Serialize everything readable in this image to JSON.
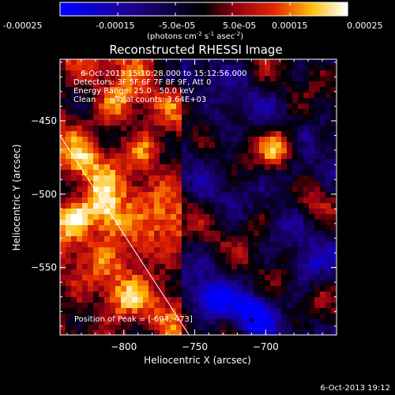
{
  "chart_data": {
    "type": "heatmap",
    "title": "Reconstructed RHESSI Image",
    "xlabel": "Heliocentric X (arcsec)",
    "ylabel": "Heliocentric Y (arcsec)",
    "xlim": [
      -845,
      -650
    ],
    "ylim": [
      -596,
      -408
    ],
    "xticks": [
      -800,
      -750,
      -700
    ],
    "yticks": [
      -450,
      -500,
      -550
    ],
    "colorbar": {
      "min": -0.00025,
      "max": 0.00025,
      "tick_labels": [
        "-0.00025",
        "-0.00015",
        "-5.0e-05",
        "5.0e-05",
        "0.00015",
        "0.00025"
      ],
      "unit_label": "(photons cm",
      "unit_sup1": "-2",
      "unit_mid": " s",
      "unit_sup2": "-1",
      "unit_mid2": " asec",
      "unit_sup3": "-2",
      "unit_end": ")"
    },
    "annotations": {
      "time_range": "6-Oct-2013 15:10:28.000 to 15:12:56.000",
      "detectors": "Detectors: 3F 5F 6F 7F 8F 9F, Att 0",
      "energy": "Energy Range: 25.0 - 50.0 keV",
      "method": "Clean",
      "counts": "Total counts: 3.64E+03",
      "peak": "Position of Peak = [-694,-473]"
    },
    "peak": [
      -694,
      -473
    ],
    "limb_line": [
      [
        -845,
        -460
      ],
      [
        -754,
        -596
      ]
    ],
    "features": [
      {
        "x": -690,
        "y": -467,
        "value": 0.00024
      },
      {
        "x": -808,
        "y": -519,
        "value": 0.0002
      },
      {
        "x": -817,
        "y": -505,
        "value": 0.00018
      },
      {
        "x": -835,
        "y": -516,
        "value": 0.00016
      },
      {
        "x": -787,
        "y": -536,
        "value": 0.00015
      },
      {
        "x": -805,
        "y": -440,
        "value": 0.00012
      },
      {
        "x": -784,
        "y": -469,
        "value": 0.00011
      },
      {
        "x": -829,
        "y": -482,
        "value": 0.0001
      },
      {
        "x": -803,
        "y": -573,
        "value": 0.0001
      },
      {
        "x": -768,
        "y": -519,
        "value": 8e-05
      },
      {
        "x": -708,
        "y": -519,
        "value": 8e-05
      },
      {
        "x": -668,
        "y": -503,
        "value": 7e-05
      },
      {
        "x": -738,
        "y": -572,
        "value": -0.00021
      },
      {
        "x": -708,
        "y": -582,
        "value": -0.00024
      },
      {
        "x": -682,
        "y": -489,
        "value": -0.00012
      },
      {
        "x": -730,
        "y": -452,
        "value": -8e-05
      },
      {
        "x": -672,
        "y": -550,
        "value": -0.0001
      },
      {
        "x": -769,
        "y": -425,
        "value": -7e-05
      }
    ]
  },
  "footer": {
    "timestamp": "6-Oct-2013 19:12"
  }
}
